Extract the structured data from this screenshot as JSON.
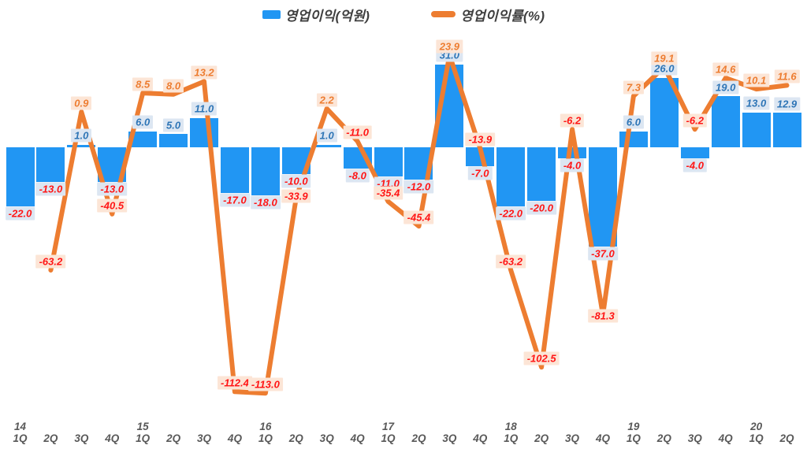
{
  "legend": {
    "items": [
      {
        "label": "영업이익(억원)",
        "series": "bar"
      },
      {
        "label": "영업이익률(%)",
        "series": "line"
      }
    ]
  },
  "colors": {
    "bar": "#2196F3",
    "line": "#ED7D31",
    "bar_label_bg": "#DCE6F2",
    "bar_label_pos_text": "#2E75B6",
    "bar_label_neg_text": "#FF1616",
    "line_label_bg": "#FCE5D6",
    "line_label_pos_text": "#ED7D31",
    "line_label_neg_text": "#FF1616",
    "axis_text": "#595959",
    "legend_text": "#3F3F3F"
  },
  "chart_data": {
    "type": "bar",
    "subtype": "combo-bar-line",
    "title": "",
    "xlabel": "",
    "ylabel": "",
    "grid": false,
    "legend_position": "top-center",
    "value_format": "one-decimal",
    "categories": [
      {
        "year": "14",
        "q": "1Q"
      },
      {
        "year": "",
        "q": "2Q"
      },
      {
        "year": "",
        "q": "3Q"
      },
      {
        "year": "",
        "q": "4Q"
      },
      {
        "year": "15",
        "q": "1Q"
      },
      {
        "year": "",
        "q": "2Q"
      },
      {
        "year": "",
        "q": "3Q"
      },
      {
        "year": "",
        "q": "4Q"
      },
      {
        "year": "16",
        "q": "1Q"
      },
      {
        "year": "",
        "q": "2Q"
      },
      {
        "year": "",
        "q": "3Q"
      },
      {
        "year": "",
        "q": "4Q"
      },
      {
        "year": "17",
        "q": "1Q"
      },
      {
        "year": "",
        "q": "2Q"
      },
      {
        "year": "",
        "q": "3Q"
      },
      {
        "year": "",
        "q": "4Q"
      },
      {
        "year": "18",
        "q": "1Q"
      },
      {
        "year": "",
        "q": "2Q"
      },
      {
        "year": "",
        "q": "3Q"
      },
      {
        "year": "",
        "q": "4Q"
      },
      {
        "year": "19",
        "q": "1Q"
      },
      {
        "year": "",
        "q": "2Q"
      },
      {
        "year": "",
        "q": "3Q"
      },
      {
        "year": "",
        "q": "4Q"
      },
      {
        "year": "20",
        "q": "1Q"
      },
      {
        "year": "",
        "q": "2Q"
      }
    ],
    "series": [
      {
        "name": "영업이익(억원)",
        "type": "bar",
        "values": [
          -22.0,
          -13.0,
          1.0,
          -13.0,
          6.0,
          5.0,
          11.0,
          -17.0,
          -18.0,
          -10.0,
          1.0,
          -8.0,
          -11.0,
          -12.0,
          31.0,
          -7.0,
          -22.0,
          -20.0,
          -4.0,
          -37.0,
          6.0,
          26.0,
          -4.0,
          19.0,
          13.0,
          12.9
        ]
      },
      {
        "name": "영업이익률(%)",
        "type": "line",
        "values": [
          null,
          -63.2,
          0.9,
          -40.5,
          8.5,
          8.0,
          13.2,
          -112.4,
          -113.0,
          -33.9,
          2.2,
          -11.0,
          -35.4,
          -45.4,
          23.9,
          -13.9,
          -63.2,
          -102.5,
          -6.2,
          -81.3,
          7.3,
          19.1,
          -6.2,
          14.6,
          10.1,
          11.6
        ]
      }
    ]
  }
}
